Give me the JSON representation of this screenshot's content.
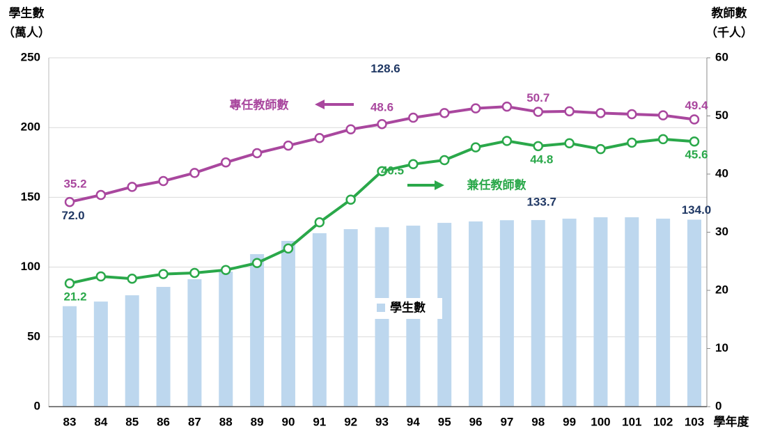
{
  "chart_data": {
    "type": "bar_line",
    "ylabel": [
      "學生數",
      "（萬人）"
    ],
    "y2label": [
      "教師數",
      "（千人）"
    ],
    "xlabel": "學年度",
    "categories": [
      "83",
      "84",
      "85",
      "86",
      "87",
      "88",
      "89",
      "90",
      "91",
      "92",
      "93",
      "94",
      "95",
      "96",
      "97",
      "98",
      "99",
      "100",
      "101",
      "102",
      "103"
    ],
    "ylim": [
      0,
      250
    ],
    "yticks": [
      0,
      50,
      100,
      150,
      200,
      250
    ],
    "y2lim": [
      0,
      60
    ],
    "y2ticks": [
      0,
      10,
      20,
      30,
      40,
      50,
      60
    ],
    "grid": true,
    "series": [
      {
        "name": "學生數",
        "type": "bar",
        "color": "#bdd7ee",
        "values": [
          72.0,
          75.3,
          79.8,
          85.8,
          91.3,
          96.8,
          109.3,
          118.8,
          124.3,
          127.2,
          128.6,
          129.7,
          131.7,
          132.7,
          133.6,
          133.7,
          134.7,
          135.7,
          135.7,
          134.7,
          134.0
        ],
        "value_labels": [
          "72.0",
          null,
          null,
          null,
          null,
          null,
          null,
          null,
          null,
          null,
          "128.6",
          null,
          null,
          null,
          null,
          "133.7",
          null,
          null,
          null,
          null,
          "134.0"
        ]
      },
      {
        "name": "專任教師數",
        "type": "line",
        "axis": "y2",
        "color": "#a9479e",
        "values": [
          35.2,
          36.4,
          37.8,
          38.8,
          40.2,
          42.0,
          43.6,
          44.9,
          46.2,
          47.7,
          48.6,
          49.7,
          50.5,
          51.3,
          51.6,
          50.7,
          50.8,
          50.5,
          50.3,
          50.1,
          49.4
        ],
        "value_labels": [
          "35.2",
          null,
          null,
          null,
          null,
          null,
          null,
          null,
          null,
          null,
          "48.6",
          null,
          null,
          null,
          null,
          "50.7",
          null,
          null,
          null,
          null,
          "49.4"
        ]
      },
      {
        "name": "兼任教師數",
        "type": "line",
        "axis": "y2",
        "color": "#2aa84a",
        "values": [
          21.2,
          22.4,
          22.0,
          22.8,
          23.0,
          23.5,
          24.7,
          27.2,
          31.7,
          35.6,
          40.5,
          41.7,
          42.4,
          44.6,
          45.7,
          44.8,
          45.3,
          44.3,
          45.4,
          46.0,
          45.6
        ],
        "value_labels": [
          "21.2",
          null,
          null,
          null,
          null,
          null,
          null,
          null,
          null,
          null,
          "40.5",
          null,
          null,
          null,
          null,
          "44.8",
          null,
          null,
          null,
          null,
          "45.6"
        ]
      }
    ]
  }
}
